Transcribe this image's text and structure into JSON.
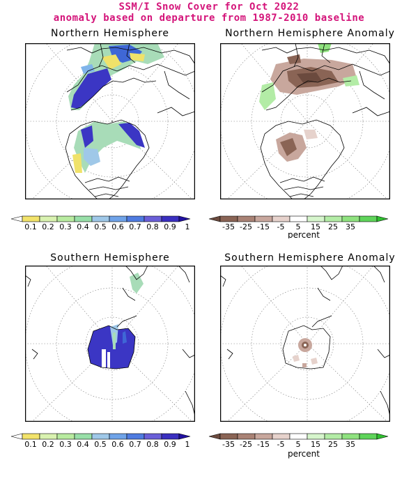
{
  "header": {
    "line1": "SSM/I Snow Cover for Oct 2022",
    "line2": "anomaly based on departure from 1987-2010 baseline"
  },
  "panels": {
    "nh": "Northern Hemisphere",
    "nh_anom": "Northern Hemisphere Anomaly",
    "sh": "Southern Hemisphere",
    "sh_anom": "Southern Hemisphere Anomaly"
  },
  "colorbars": {
    "fraction": {
      "labels": [
        "0.1",
        "0.2",
        "0.3",
        "0.4",
        "0.5",
        "0.6",
        "0.7",
        "0.8",
        "0.9",
        "1"
      ],
      "colors": [
        "#ffffff",
        "#f2e36b",
        "#d9f2b0",
        "#b8eba0",
        "#98dfa8",
        "#9fc8e8",
        "#6fa3e8",
        "#4f7be0",
        "#6a5fd8",
        "#3a2fc0",
        "#2010a0"
      ]
    },
    "anomaly": {
      "labels": [
        "-35",
        "-25",
        "-15",
        "-5",
        "5",
        "15",
        "25",
        "35"
      ],
      "unit": "percent",
      "colors": [
        "#6b4a3e",
        "#8a6455",
        "#a98275",
        "#c8a79d",
        "#e6d2cc",
        "#ffffff",
        "#d6f5cc",
        "#b3eca6",
        "#8fe27f",
        "#5fd45a",
        "#2fc02f"
      ]
    }
  }
}
